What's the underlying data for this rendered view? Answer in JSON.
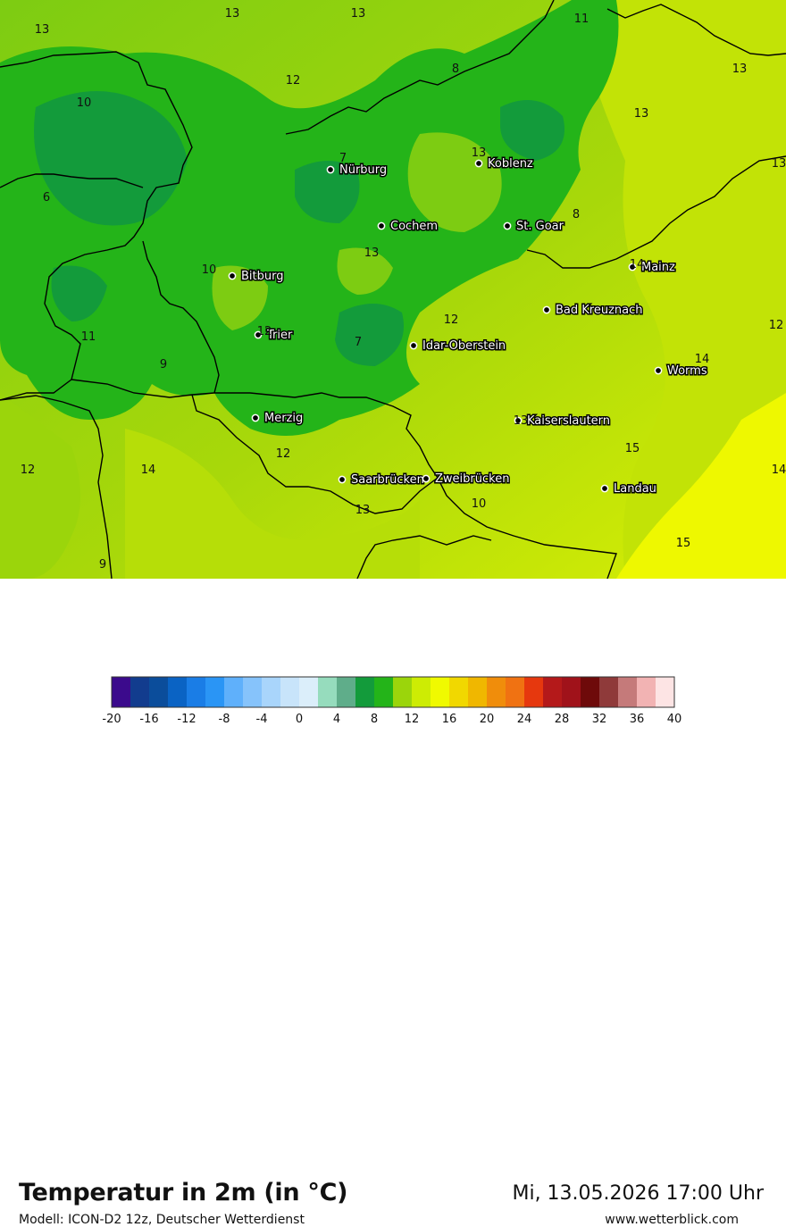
{
  "header": {
    "title": "Temperatur in 2m (in °C)",
    "model": "Modell: ICON-D2 12z, Deutscher Wetterdienst",
    "datetime": "Mi, 13.05.2026 17:00 Uhr",
    "website": "www.wetterblick.com"
  },
  "map": {
    "cities": [
      {
        "name": "Nürburg"
      },
      {
        "name": "Koblenz"
      },
      {
        "name": "Cochem"
      },
      {
        "name": "St. Goar"
      },
      {
        "name": "Mainz"
      },
      {
        "name": "Bitburg"
      },
      {
        "name": "Bad Kreuznach"
      },
      {
        "name": "Trier"
      },
      {
        "name": "Idar-Oberstein"
      },
      {
        "name": "Worms"
      },
      {
        "name": "Merzig"
      },
      {
        "name": "Kaiserslautern"
      },
      {
        "name": "Saarbrücken"
      },
      {
        "name": "Zweibrücken"
      },
      {
        "name": "Landau"
      }
    ],
    "value_labels": [
      "13",
      "13",
      "11",
      "13",
      "12",
      "8",
      "13",
      "10",
      "13",
      "13",
      "7",
      "6",
      "13",
      "8",
      "10",
      "14",
      "13",
      "12",
      "12",
      "11",
      "7",
      "9",
      "14",
      "15",
      "12",
      "14",
      "12",
      "14",
      "12",
      "10",
      "13",
      "15",
      "9",
      "13"
    ]
  },
  "legend": {
    "colors": [
      "#3b0a8c",
      "#123c8e",
      "#0b4d9b",
      "#0a63c4",
      "#1a7de6",
      "#2a95f5",
      "#5fb0fb",
      "#86c3fb",
      "#a9d5fb",
      "#c8e4fa",
      "#dbeefa",
      "#96dcbd",
      "#5fad8a",
      "#139b3b",
      "#24b419",
      "#9bd50b",
      "#cdec04",
      "#f0fa00",
      "#f1d800",
      "#f0b700",
      "#f08d0b",
      "#f07212",
      "#e6380e",
      "#b4191a",
      "#a0121a",
      "#6e0a0a",
      "#8f3a3a",
      "#c57a7a",
      "#f2b3b3",
      "#fde4e4"
    ],
    "tick_labels": [
      "-20",
      "-16",
      "-12",
      "-8",
      "-4",
      "0",
      "4",
      "8",
      "12",
      "16",
      "20",
      "24",
      "28",
      "32",
      "36",
      "40"
    ]
  }
}
